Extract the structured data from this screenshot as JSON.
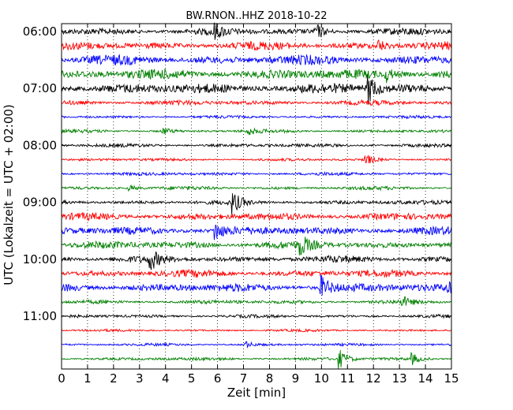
{
  "chart_data": {
    "type": "line",
    "title": "BW.RNON..HHZ 2018-10-22",
    "xlabel": "Zeit  [min]",
    "ylabel": "UTC (Lokalzeit = UTC + 02:00)",
    "xlim": [
      0,
      15
    ],
    "xticks": [
      0,
      1,
      2,
      3,
      4,
      5,
      6,
      7,
      8,
      9,
      10,
      11,
      12,
      13,
      14,
      15
    ],
    "yticks": [
      "06:00",
      "07:00",
      "08:00",
      "09:00",
      "10:00",
      "11:00"
    ],
    "grid": "vertical-dotted",
    "trace_interval_min": 15,
    "first_trace": "06:00",
    "last_trace": "11:45",
    "color_cycle": [
      "#000000",
      "#ff0000",
      "#0000ff",
      "#008000"
    ],
    "series": [
      {
        "start": "06:00",
        "amplitude": 0.34,
        "events": [
          {
            "t": 5.85,
            "a": 0.7
          },
          {
            "t": 9.8,
            "a": 0.6
          }
        ]
      },
      {
        "start": "06:15",
        "amplitude": 0.4,
        "events": [
          {
            "t": 12.2,
            "a": 0.45
          }
        ]
      },
      {
        "start": "06:30",
        "amplitude": 0.48,
        "events": []
      },
      {
        "start": "06:45",
        "amplitude": 0.5,
        "events": [
          {
            "t": 12.5,
            "a": 0.6
          }
        ]
      },
      {
        "start": "07:00",
        "amplitude": 0.52,
        "events": [
          {
            "t": 11.8,
            "a": 1.2
          }
        ]
      },
      {
        "start": "07:15",
        "amplitude": 0.24,
        "events": []
      },
      {
        "start": "07:30",
        "amplitude": 0.14,
        "events": []
      },
      {
        "start": "07:45",
        "amplitude": 0.16,
        "events": [
          {
            "t": 3.9,
            "a": 0.3
          },
          {
            "t": 7.2,
            "a": 0.28
          }
        ]
      },
      {
        "start": "08:00",
        "amplitude": 0.18,
        "events": []
      },
      {
        "start": "08:15",
        "amplitude": 0.14,
        "events": [
          {
            "t": 11.7,
            "a": 0.5
          }
        ]
      },
      {
        "start": "08:30",
        "amplitude": 0.16,
        "events": []
      },
      {
        "start": "08:45",
        "amplitude": 0.18,
        "events": [
          {
            "t": 2.6,
            "a": 0.28
          }
        ]
      },
      {
        "start": "09:00",
        "amplitude": 0.22,
        "events": [
          {
            "t": 6.6,
            "a": 0.9
          }
        ]
      },
      {
        "start": "09:15",
        "amplitude": 0.36,
        "events": []
      },
      {
        "start": "09:30",
        "amplitude": 0.4,
        "events": [
          {
            "t": 5.9,
            "a": 0.9
          }
        ]
      },
      {
        "start": "09:45",
        "amplitude": 0.38,
        "events": [
          {
            "t": 9.2,
            "a": 0.8
          }
        ]
      },
      {
        "start": "10:00",
        "amplitude": 0.34,
        "events": [
          {
            "t": 3.4,
            "a": 0.9
          }
        ]
      },
      {
        "start": "10:15",
        "amplitude": 0.36,
        "events": []
      },
      {
        "start": "10:30",
        "amplitude": 0.42,
        "events": [
          {
            "t": 10.0,
            "a": 1.0
          },
          {
            "t": 14.9,
            "a": 0.6
          }
        ]
      },
      {
        "start": "10:45",
        "amplitude": 0.2,
        "events": [
          {
            "t": 13.1,
            "a": 0.45
          }
        ]
      },
      {
        "start": "11:00",
        "amplitude": 0.16,
        "events": []
      },
      {
        "start": "11:15",
        "amplitude": 0.12,
        "events": []
      },
      {
        "start": "11:30",
        "amplitude": 0.13,
        "events": [
          {
            "t": 7.1,
            "a": 0.25
          }
        ]
      },
      {
        "start": "11:45",
        "amplitude": 0.16,
        "events": [
          {
            "t": 10.7,
            "a": 0.8
          },
          {
            "t": 13.5,
            "a": 0.45
          }
        ]
      }
    ]
  }
}
